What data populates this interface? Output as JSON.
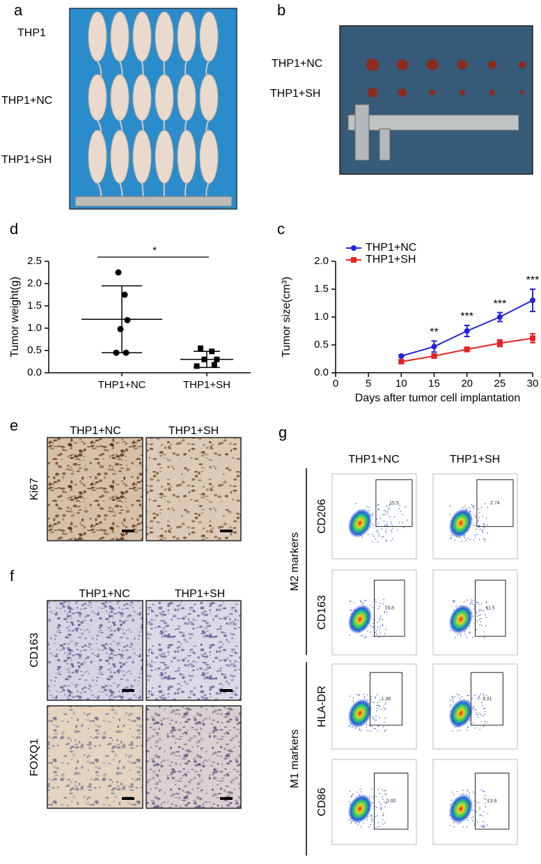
{
  "panels": {
    "a": {
      "letter": "a",
      "labels": [
        "THP1",
        "THP1+NC",
        "THP1+SH"
      ]
    },
    "b": {
      "letter": "b",
      "labels": [
        "THP1+NC",
        "THP1+SH"
      ]
    },
    "e": {
      "letter": "e",
      "columns": [
        "THP1+NC",
        "THP1+SH"
      ],
      "rows": [
        "Ki67"
      ]
    },
    "f": {
      "letter": "f",
      "columns": [
        "THP1+NC",
        "THP1+SH"
      ],
      "rows": [
        "CD163",
        "FOXQ1"
      ]
    },
    "g": {
      "letter": "g",
      "columns": [
        "THP1+NC",
        "THP1+SH"
      ],
      "groups": [
        "M2 markers",
        "M1 markers"
      ],
      "rows": [
        "CD206",
        "CD163",
        "HLA-DR",
        "CD86"
      ],
      "gates": [
        [
          "15.5",
          "2.74"
        ],
        [
          "19.8",
          "11.5"
        ],
        [
          "1.36",
          "3.31"
        ],
        [
          "3.00",
          "13.6"
        ]
      ]
    }
  },
  "chart_data": [
    {
      "type": "strip",
      "panel": "d",
      "ylabel": "Tumor weight(g)",
      "categories": [
        "THP1+NC",
        "THP1+SH"
      ],
      "series": [
        {
          "values": [
            2.25,
            1.75,
            1.18,
            0.98,
            0.45,
            0.45
          ],
          "mean": 1.2,
          "error": 0.75
        },
        {
          "values": [
            0.55,
            0.48,
            0.3,
            0.3,
            0.15,
            0.18
          ],
          "mean": 0.3,
          "error": 0.18
        }
      ],
      "annotation": "*",
      "ylim": [
        0,
        2.5
      ],
      "yticks": [
        {
          "value": 0,
          "label": "0.0"
        },
        0.5,
        {
          "value": 1,
          "label": "1.0"
        },
        1.5,
        {
          "value": 2,
          "label": "2.0"
        },
        2.5
      ],
      "color": "#000000"
    },
    {
      "type": "line",
      "panel": "c",
      "ylabel": "Tumor size(cm³)",
      "xlabel": "Days after tumor cell implantation",
      "x": [
        10,
        15,
        20,
        25,
        30
      ],
      "series": [
        {
          "name": "THP1+NC",
          "color": "#2222dd",
          "marker": "circle",
          "values": [
            0.3,
            0.47,
            0.75,
            1.0,
            1.3
          ],
          "errors": [
            0.02,
            0.1,
            0.1,
            0.08,
            0.2
          ]
        },
        {
          "name": "THP1+SH",
          "color": "#e52222",
          "marker": "square",
          "values": [
            0.2,
            0.3,
            0.42,
            0.53,
            0.62
          ],
          "errors": [
            0.02,
            0.03,
            0.04,
            0.06,
            0.08
          ]
        }
      ],
      "annotations": [
        {
          "x": 15,
          "label": "**"
        },
        {
          "x": 20,
          "label": "***"
        },
        {
          "x": 25,
          "label": "***"
        },
        {
          "x": 30,
          "label": "***"
        }
      ],
      "xlim": [
        0,
        30
      ],
      "xticks": [
        0,
        5,
        10,
        15,
        20,
        25,
        30
      ],
      "ylim": [
        0,
        2
      ],
      "yticks": [
        {
          "value": 0,
          "label": "0.0"
        },
        0.5,
        {
          "value": 1,
          "label": "1.0"
        },
        1.5,
        {
          "value": 2,
          "label": "2.0"
        }
      ],
      "legend": "upper-left"
    }
  ]
}
